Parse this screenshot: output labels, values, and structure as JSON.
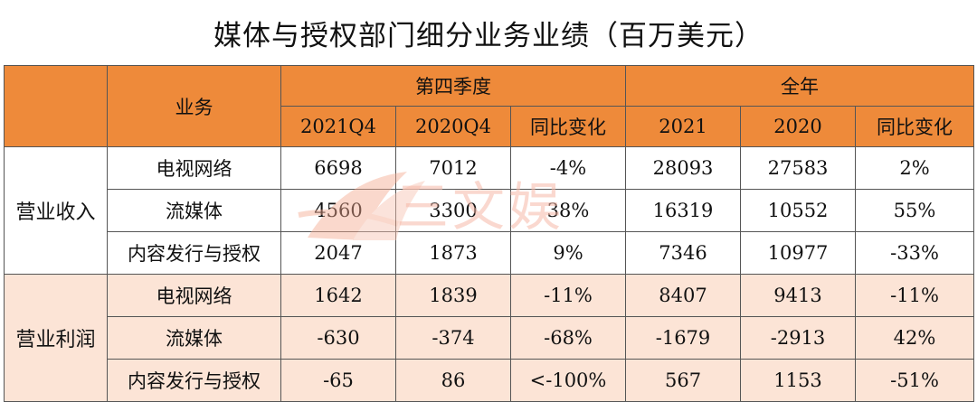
{
  "title": "媒体与授权部门细分业务业绩（百万美元）",
  "header": {
    "business": "业务",
    "q4_group": "第四季度",
    "year_group": "全年",
    "cols": [
      "2021Q4",
      "2020Q4",
      "同比变化",
      "2021",
      "2020",
      "同比变化"
    ]
  },
  "sections": [
    {
      "label": "营业收入",
      "rows": [
        {
          "name": "电视网络",
          "values": [
            "6698",
            "7012",
            "-4%",
            "28093",
            "27583",
            "2%"
          ]
        },
        {
          "name": "流媒体",
          "values": [
            "4560",
            "3300",
            "38%",
            "16319",
            "10552",
            "55%"
          ]
        },
        {
          "name": "内容发行与授权",
          "values": [
            "2047",
            "1873",
            "9%",
            "7346",
            "10977",
            "-33%"
          ]
        }
      ]
    },
    {
      "label": "营业利润",
      "rows": [
        {
          "name": "电视网络",
          "values": [
            "1642",
            "1839",
            "-11%",
            "8407",
            "9413",
            "-11%"
          ]
        },
        {
          "name": "流媒体",
          "values": [
            "-630",
            "-374",
            "-68%",
            "-1679",
            "-2913",
            "42%"
          ]
        },
        {
          "name": "内容发行与授权",
          "values": [
            "-65",
            "86",
            "<-100%",
            "567",
            "1153",
            "-51%"
          ]
        }
      ]
    }
  ],
  "watermark": {
    "text": "三文娱"
  },
  "colors": {
    "header_bg": "#ee8a3a",
    "profit_bg": "#fce4d6"
  }
}
